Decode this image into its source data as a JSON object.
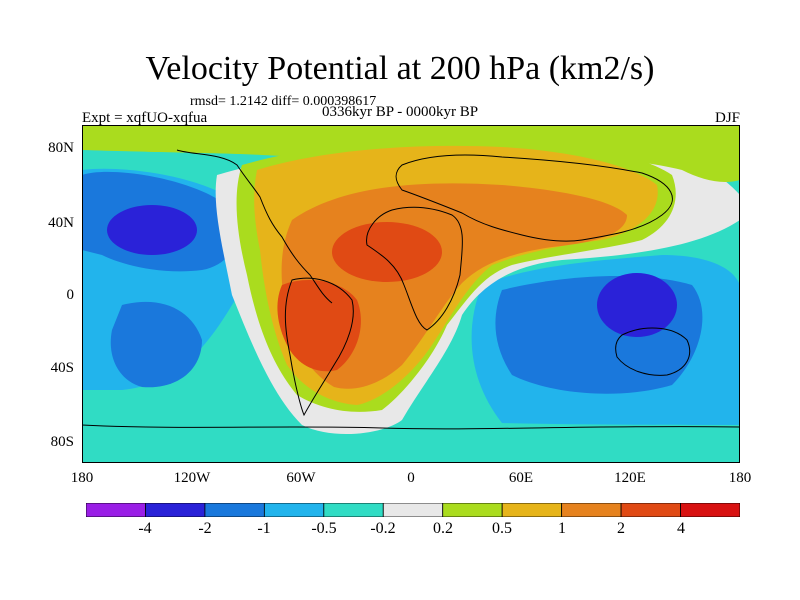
{
  "title": "Velocity Potential at 200 hPa (km2/s)",
  "stats": "rmsd= 1.2142 diff= 0.000398617",
  "experiment": "Expt = xqfUO-xqfua",
  "period": "0336kyr BP - 0000kyr BP",
  "season": "DJF",
  "lat_labels": [
    "80N",
    "40N",
    "0",
    "40S",
    "80S"
  ],
  "lon_labels": [
    "180",
    "120W",
    "60W",
    "0",
    "60E",
    "120E",
    "180"
  ],
  "colorbar": {
    "labels": [
      "-4",
      "-2",
      "-1",
      "-0.5",
      "-0.2",
      "0.2",
      "0.5",
      "1",
      "2",
      "4"
    ],
    "colors": [
      "#9a1ee6",
      "#2a22d8",
      "#1a78dc",
      "#22b4ec",
      "#30dcc4",
      "#e8e8e8",
      "#aadc1e",
      "#e6b41a",
      "#e6821e",
      "#e04a14",
      "#d81212"
    ]
  }
}
